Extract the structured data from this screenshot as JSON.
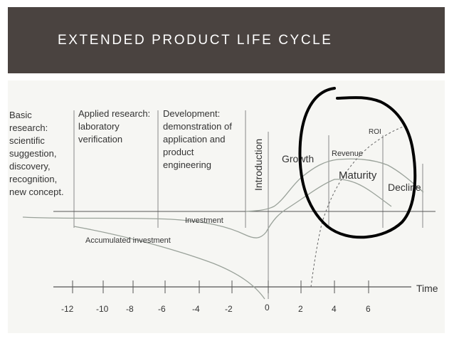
{
  "slide": {
    "title": "EXTENDED PRODUCT LIFE CYCLE"
  },
  "diagram": {
    "phases": {
      "basic": [
        "Basic",
        "research:",
        "scientific",
        "suggestion,",
        "discovery,",
        "recognition,",
        "new concept."
      ],
      "applied": [
        "Applied research:",
        "laboratory",
        "verification"
      ],
      "development": [
        "Development:",
        "demonstration of",
        "application and",
        "product",
        "engineering"
      ]
    },
    "stages": {
      "introduction": "Introduction",
      "growth": "Growth",
      "maturity": "Maturity",
      "decline": "Decline"
    },
    "curves": {
      "revenue": "Revenue",
      "roi": "ROI",
      "investment": "Investment",
      "accumulated": "Accumulated investment"
    },
    "axis": {
      "label": "Time",
      "ticks": [
        "-12",
        "-10",
        "-8",
        "-6",
        "-4",
        "-2",
        "0",
        "2",
        "4",
        "6"
      ]
    },
    "colors": {
      "curve": "#9aa29a",
      "axis": "#555555",
      "annotation_ink": "#000000"
    }
  }
}
